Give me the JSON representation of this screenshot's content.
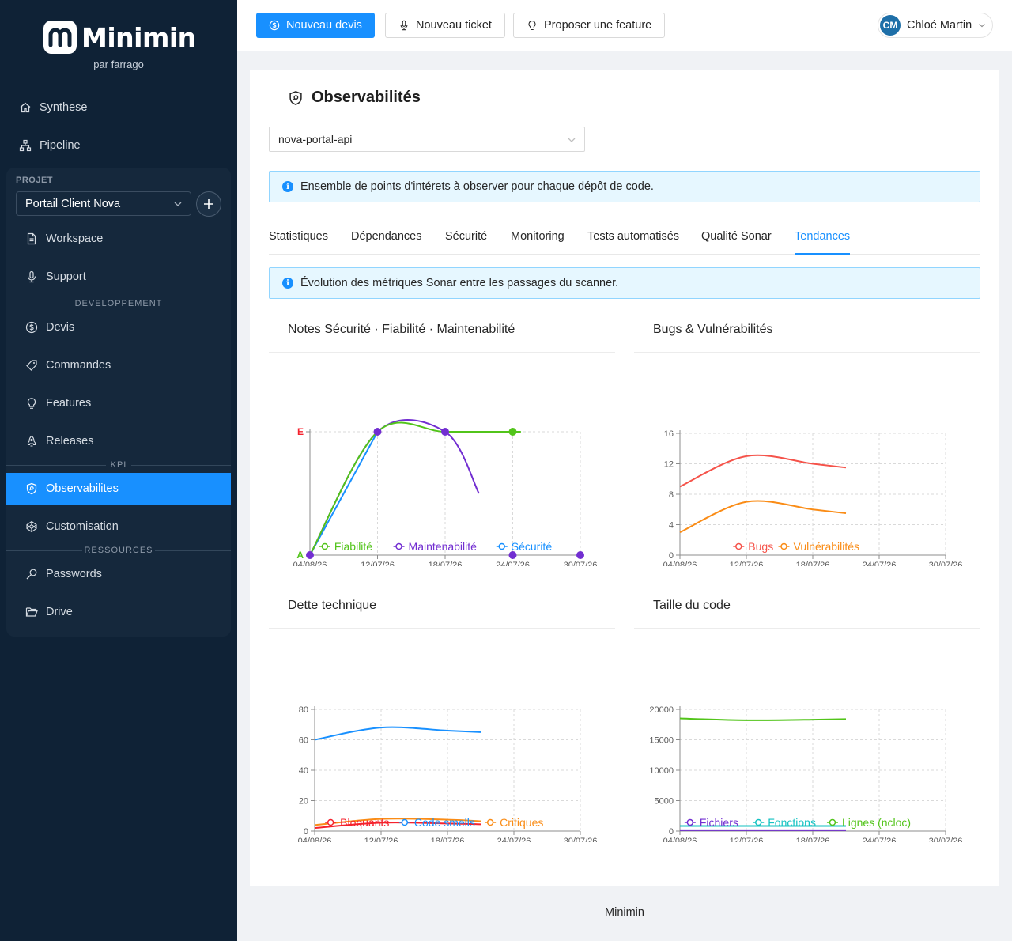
{
  "app": {
    "name": "Minimin",
    "tagline": "par farrago",
    "footer": "Minimin"
  },
  "sidebar": {
    "top_items": [
      {
        "label": "Synthese",
        "icon": "home-icon"
      },
      {
        "label": "Pipeline",
        "icon": "sitemap-icon"
      }
    ],
    "project_label": "PROJET",
    "project_value": "Portail Client Nova",
    "items_main": [
      {
        "label": "Workspace",
        "icon": "file-icon"
      },
      {
        "label": "Support",
        "icon": "microphone-icon"
      }
    ],
    "section_dev": "DEVELOPPEMENT",
    "items_dev": [
      {
        "label": "Devis",
        "icon": "dollar-icon"
      },
      {
        "label": "Commandes",
        "icon": "tag-icon"
      },
      {
        "label": "Features",
        "icon": "bulb-icon"
      },
      {
        "label": "Releases",
        "icon": "rocket-icon"
      }
    ],
    "section_kpi": "KPI",
    "items_kpi": [
      {
        "label": "Observabilites",
        "icon": "shield-icon",
        "active": true
      },
      {
        "label": "Customisation",
        "icon": "codepen-icon"
      }
    ],
    "section_res": "RESSOURCES",
    "items_res": [
      {
        "label": "Passwords",
        "icon": "key-icon"
      },
      {
        "label": "Drive",
        "icon": "folder-open-icon"
      }
    ]
  },
  "topbar": {
    "new_quote": "Nouveau devis",
    "new_ticket": "Nouveau ticket",
    "propose_feature": "Proposer une feature",
    "user_initials": "CM",
    "user_name": "Chloé Martin"
  },
  "page": {
    "title": "Observabilités",
    "repo": "nova-portal-api",
    "info_main": "Ensemble de points d'intérets à observer pour chaque dépôt de code.",
    "info_tab": "Évolution des métriques Sonar entre les passages du scanner.",
    "tabs": [
      "Statistiques",
      "Dépendances",
      "Sécurité",
      "Monitoring",
      "Tests automatisés",
      "Qualité Sonar",
      "Tendances"
    ],
    "active_tab": "Tendances"
  },
  "colors": {
    "accent": "#1890ff",
    "sidebar_bg": "#0f2236",
    "green": "#52c41a",
    "purple": "#722ed1",
    "blue": "#1890ff",
    "red": "#f5222d",
    "orange": "#fa8c16",
    "cyan": "#13c2c2",
    "coral": "#f5534a"
  },
  "chart_data": [
    {
      "type": "line",
      "title": "Notes Sécurité · Fiabilité · Maintenabilité",
      "x_ticks": [
        "04/08/26",
        "12/07/26",
        "18/07/26",
        "24/07/26",
        "30/07/26"
      ],
      "y_ticks": [
        "A",
        "E"
      ],
      "ylim": [
        0,
        4
      ],
      "series": [
        {
          "name": "Fiabilité",
          "color": "#52c41a",
          "x": [
            0,
            1,
            2,
            3,
            3.1
          ],
          "values": [
            0,
            4,
            4,
            4,
            4
          ]
        },
        {
          "name": "Maintenabilité",
          "color": "#722ed1",
          "x": [
            0,
            1,
            2,
            2.5
          ],
          "values": [
            0,
            4,
            4,
            2
          ]
        },
        {
          "name": "Sécurité",
          "color": "#1890ff",
          "x": [
            0,
            1
          ],
          "values": [
            0,
            4
          ]
        }
      ],
      "grid": true,
      "legend": "bottom"
    },
    {
      "type": "line",
      "title": "Bugs & Vulnérabilités",
      "x_ticks": [
        "04/08/26",
        "12/07/26",
        "18/07/26",
        "24/07/26",
        "30/07/26"
      ],
      "y_ticks": [
        0,
        4,
        8,
        12,
        16
      ],
      "ylim": [
        0,
        16
      ],
      "series": [
        {
          "name": "Bugs",
          "color": "#f5534a",
          "x": [
            0,
            1,
            2,
            2.5
          ],
          "values": [
            9,
            13,
            12,
            11.5
          ]
        },
        {
          "name": "Vulnérabilités",
          "color": "#fa8c16",
          "x": [
            0,
            1,
            2,
            2.5
          ],
          "values": [
            3,
            7,
            6,
            5.5
          ]
        }
      ],
      "grid": true,
      "legend": "bottom"
    },
    {
      "type": "line",
      "title": "Dette technique",
      "x_ticks": [
        "04/08/26",
        "12/07/26",
        "18/07/26",
        "24/07/26",
        "30/07/26"
      ],
      "y_ticks": [
        0,
        20,
        40,
        60,
        80
      ],
      "ylim": [
        0,
        80
      ],
      "series": [
        {
          "name": "Bloquants",
          "color": "#f5222d",
          "x": [
            0,
            1,
            2,
            2.5
          ],
          "values": [
            2,
            5.5,
            5,
            4.5
          ]
        },
        {
          "name": "Code smells",
          "color": "#1890ff",
          "x": [
            0,
            1,
            2,
            2.5
          ],
          "values": [
            60,
            68,
            66,
            65
          ]
        },
        {
          "name": "Critiques",
          "color": "#fa8c16",
          "x": [
            0,
            1,
            2,
            2.5
          ],
          "values": [
            4,
            8,
            7.5,
            6.5
          ]
        }
      ],
      "grid": true,
      "legend": "bottom"
    },
    {
      "type": "line",
      "title": "Taille du code",
      "x_ticks": [
        "04/08/26",
        "12/07/26",
        "18/07/26",
        "24/07/26",
        "30/07/26"
      ],
      "y_ticks": [
        0,
        5000,
        10000,
        15000,
        20000
      ],
      "ylim": [
        0,
        20000
      ],
      "series": [
        {
          "name": "Fichiers",
          "color": "#722ed1",
          "x": [
            0,
            1,
            2,
            2.5
          ],
          "values": [
            150,
            150,
            150,
            150
          ]
        },
        {
          "name": "Fonctions",
          "color": "#13c2c2",
          "x": [
            0,
            1,
            2,
            2.5
          ],
          "values": [
            850,
            850,
            850,
            850
          ]
        },
        {
          "name": "Lignes (ncloc)",
          "color": "#52c41a",
          "x": [
            0,
            1,
            2,
            2.5
          ],
          "values": [
            18500,
            18200,
            18300,
            18400
          ]
        }
      ],
      "grid": true,
      "legend": "bottom"
    }
  ]
}
